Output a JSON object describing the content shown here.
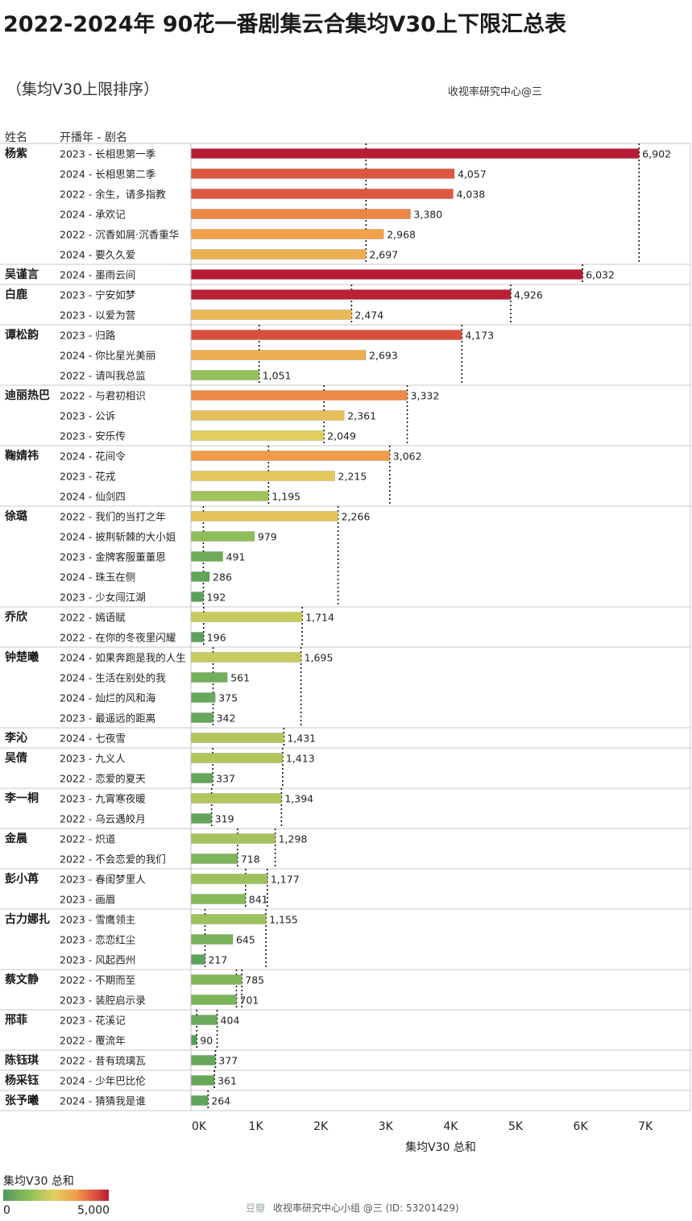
{
  "header": {
    "title": "2022-2024年 90花一番剧集云合集均V30上下限汇总表",
    "subtitle": "（集均V30上限排序）",
    "source": "收视率研究中心@三"
  },
  "columns": {
    "name": "姓名",
    "drama": "开播年 - 剧名"
  },
  "legend": {
    "title": "集均V30 总和",
    "min_label": "0",
    "max_label": "5,000",
    "min": 0,
    "max": 5000
  },
  "watermark": {
    "brand": "豆瓣",
    "text": "收视率研究中心小组 @三 (ID: 53201429)"
  },
  "chart_data": {
    "type": "bar",
    "orientation": "horizontal",
    "xlabel": "集均V30 总和",
    "xlim": [
      0,
      7500
    ],
    "xticks": [
      0,
      1000,
      2000,
      3000,
      4000,
      5000,
      6000,
      7000
    ],
    "xtick_labels": [
      "0K",
      "1K",
      "2K",
      "3K",
      "4K",
      "5K",
      "6K",
      "7K"
    ],
    "color_scale": {
      "min": 0,
      "max": 5000,
      "stops": [
        "#4f9a5a",
        "#8fbf5a",
        "#e0d060",
        "#f2a04a",
        "#e05a40",
        "#b81c35"
      ]
    },
    "groups": [
      {
        "name": "杨紫",
        "items": [
          {
            "label": "2023 - 长相思第一季",
            "value": 6902,
            "value_label": "6,902"
          },
          {
            "label": "2024 - 长相思第二季",
            "value": 4057,
            "value_label": "4,057"
          },
          {
            "label": "2022 - 余生，请多指教",
            "value": 4038,
            "value_label": "4,038"
          },
          {
            "label": "2024 - 承欢记",
            "value": 3380,
            "value_label": "3,380"
          },
          {
            "label": "2022 - 沉香如屑·沉香重华",
            "value": 2968,
            "value_label": "2,968"
          },
          {
            "label": "2024 - 要久久爱",
            "value": 2697,
            "value_label": "2,697"
          }
        ]
      },
      {
        "name": "吴谨言",
        "items": [
          {
            "label": "2024 - 墨雨云间",
            "value": 6032,
            "value_label": "6,032"
          }
        ]
      },
      {
        "name": "白鹿",
        "items": [
          {
            "label": "2023 - 宁安如梦",
            "value": 4926,
            "value_label": "4,926"
          },
          {
            "label": "2023 - 以爱为营",
            "value": 2474,
            "value_label": "2,474"
          }
        ]
      },
      {
        "name": "谭松韵",
        "items": [
          {
            "label": "2023 - 归路",
            "value": 4173,
            "value_label": "4,173"
          },
          {
            "label": "2024 - 你比星光美丽",
            "value": 2693,
            "value_label": "2,693"
          },
          {
            "label": "2022 - 请叫我总监",
            "value": 1051,
            "value_label": "1,051"
          }
        ]
      },
      {
        "name": "迪丽热巴",
        "items": [
          {
            "label": "2022 - 与君初相识",
            "value": 3332,
            "value_label": "3,332"
          },
          {
            "label": "2023 - 公诉",
            "value": 2361,
            "value_label": "2,361"
          },
          {
            "label": "2023 - 安乐传",
            "value": 2049,
            "value_label": "2,049"
          }
        ]
      },
      {
        "name": "鞠婧祎",
        "items": [
          {
            "label": "2024 - 花间令",
            "value": 3062,
            "value_label": "3,062"
          },
          {
            "label": "2023 - 花戎",
            "value": 2215,
            "value_label": "2,215"
          },
          {
            "label": "2024 - 仙剑四",
            "value": 1195,
            "value_label": "1,195"
          }
        ]
      },
      {
        "name": "徐璐",
        "items": [
          {
            "label": "2022 - 我们的当打之年",
            "value": 2266,
            "value_label": "2,266"
          },
          {
            "label": "2024 - 披荆斩棘的大小姐",
            "value": 979,
            "value_label": "979"
          },
          {
            "label": "2023 - 金牌客服董董恩",
            "value": 491,
            "value_label": "491"
          },
          {
            "label": "2024 - 珠玉在侧",
            "value": 286,
            "value_label": "286"
          },
          {
            "label": "2023 - 少女闯江湖",
            "value": 192,
            "value_label": "192"
          }
        ]
      },
      {
        "name": "乔欣",
        "items": [
          {
            "label": "2022 - 嫣语赋",
            "value": 1714,
            "value_label": "1,714"
          },
          {
            "label": "2022 - 在你的冬夜里闪耀",
            "value": 196,
            "value_label": "196"
          }
        ]
      },
      {
        "name": "钟楚曦",
        "items": [
          {
            "label": "2024 - 如果奔跑是我的人生",
            "value": 1695,
            "value_label": "1,695"
          },
          {
            "label": "2024 - 生活在别处的我",
            "value": 561,
            "value_label": "561"
          },
          {
            "label": "2024 - 灿烂的风和海",
            "value": 375,
            "value_label": "375"
          },
          {
            "label": "2023 - 最遥远的距离",
            "value": 342,
            "value_label": "342"
          }
        ]
      },
      {
        "name": "李沁",
        "items": [
          {
            "label": "2024 - 七夜雪",
            "value": 1431,
            "value_label": "1,431"
          }
        ]
      },
      {
        "name": "吴倩",
        "items": [
          {
            "label": "2023 - 九义人",
            "value": 1413,
            "value_label": "1,413"
          },
          {
            "label": "2022 - 恋爱的夏天",
            "value": 337,
            "value_label": "337"
          }
        ]
      },
      {
        "name": "李一桐",
        "items": [
          {
            "label": "2023 - 九霄寒夜暖",
            "value": 1394,
            "value_label": "1,394"
          },
          {
            "label": "2022 - 乌云遇皎月",
            "value": 319,
            "value_label": "319"
          }
        ]
      },
      {
        "name": "金晨",
        "items": [
          {
            "label": "2022 - 炽道",
            "value": 1298,
            "value_label": "1,298"
          },
          {
            "label": "2022 - 不会恋爱的我们",
            "value": 718,
            "value_label": "718"
          }
        ]
      },
      {
        "name": "彭小苒",
        "items": [
          {
            "label": "2023 - 春闺梦里人",
            "value": 1177,
            "value_label": "1,177"
          },
          {
            "label": "2023 - 画眉",
            "value": 841,
            "value_label": "841"
          }
        ]
      },
      {
        "name": "古力娜扎",
        "items": [
          {
            "label": "2023 - 雪鹰领主",
            "value": 1155,
            "value_label": "1,155"
          },
          {
            "label": "2023 - 恋恋红尘",
            "value": 645,
            "value_label": "645"
          },
          {
            "label": "2023 - 风起西州",
            "value": 217,
            "value_label": "217"
          }
        ]
      },
      {
        "name": "蔡文静",
        "items": [
          {
            "label": "2022 - 不期而至",
            "value": 785,
            "value_label": "785"
          },
          {
            "label": "2023 - 装腔启示录",
            "value": 701,
            "value_label": "701"
          }
        ]
      },
      {
        "name": "邢菲",
        "items": [
          {
            "label": "2023 - 花溪记",
            "value": 404,
            "value_label": "404"
          },
          {
            "label": "2022 - 覆流年",
            "value": 90,
            "value_label": "90"
          }
        ]
      },
      {
        "name": "陈钰琪",
        "items": [
          {
            "label": "2022 - 昔有琉璃瓦",
            "value": 377,
            "value_label": "377"
          }
        ]
      },
      {
        "name": "杨采钰",
        "items": [
          {
            "label": "2024 - 少年巴比伦",
            "value": 361,
            "value_label": "361"
          }
        ]
      },
      {
        "name": "张予曦",
        "items": [
          {
            "label": "2024 - 猜猜我是谁",
            "value": 264,
            "value_label": "264"
          }
        ]
      }
    ]
  }
}
